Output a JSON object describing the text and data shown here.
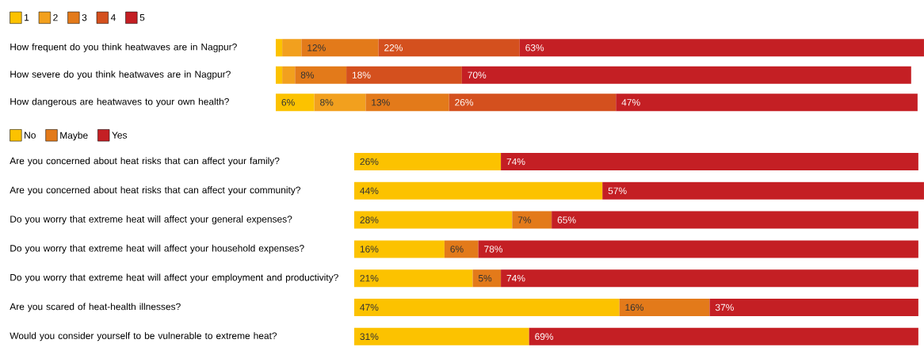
{
  "chart_data": [
    {
      "type": "bar",
      "orientation": "horizontal",
      "stacked": true,
      "legend": "top left",
      "xlim": [
        0,
        101
      ],
      "categories": [
        "How frequent do you think heatwaves are in Nagpur?",
        "How severe do you think heatwaves are in Nagpur?",
        "How dangerous are heatwaves to your own health?"
      ],
      "series": [
        {
          "name": "1",
          "color": "#fcc200",
          "values": [
            1,
            1,
            6
          ],
          "value_labels": [
            null,
            null,
            "6%"
          ]
        },
        {
          "name": "2",
          "color": "#f2a01e",
          "values": [
            3,
            2,
            8
          ],
          "value_labels": [
            null,
            null,
            "8%"
          ]
        },
        {
          "name": "3",
          "color": "#e37a1a",
          "values": [
            12,
            8,
            13
          ],
          "value_labels": [
            "12%",
            "8%",
            "13%"
          ]
        },
        {
          "name": "4",
          "color": "#d4501e",
          "values": [
            22,
            18,
            26
          ],
          "value_labels": [
            "22%",
            "18%",
            "26%"
          ]
        },
        {
          "name": "5",
          "color": "#c41f24",
          "values": [
            63,
            70,
            47
          ],
          "value_labels": [
            "63%",
            "70%",
            "47%"
          ]
        }
      ]
    },
    {
      "type": "bar",
      "orientation": "horizontal",
      "stacked": true,
      "legend": "top left",
      "xlim": [
        0,
        101
      ],
      "categories": [
        "Are you concerned about heat risks that can affect your family?",
        "Are you concerned about heat risks that can affect your community?",
        "Do you worry that extreme heat will affect your general expenses?",
        "Do you worry that extreme heat will affect your household expenses?",
        "Do you worry that extreme heat will affect your employment and productivity?",
        "Are you scared of heat-health illnesses?",
        "Would you consider yourself to be vulnerable to extreme heat?"
      ],
      "series": [
        {
          "name": "No",
          "color": "#fcc200",
          "values": [
            26,
            44,
            28,
            16,
            21,
            47,
            31
          ],
          "value_labels": [
            "26%",
            "44%",
            "28%",
            "16%",
            "21%",
            "47%",
            "31%"
          ]
        },
        {
          "name": "Maybe",
          "color": "#e37a1a",
          "values": [
            null,
            null,
            7,
            6,
            5,
            16,
            null
          ],
          "value_labels": [
            null,
            null,
            "7%",
            "6%",
            "5%",
            "16%",
            null
          ]
        },
        {
          "name": "Yes",
          "color": "#c41f24",
          "values": [
            74,
            57,
            65,
            78,
            74,
            37,
            69
          ],
          "value_labels": [
            "74%",
            "57%",
            "65%",
            "78%",
            "74%",
            "37%",
            "69%"
          ]
        }
      ]
    }
  ]
}
